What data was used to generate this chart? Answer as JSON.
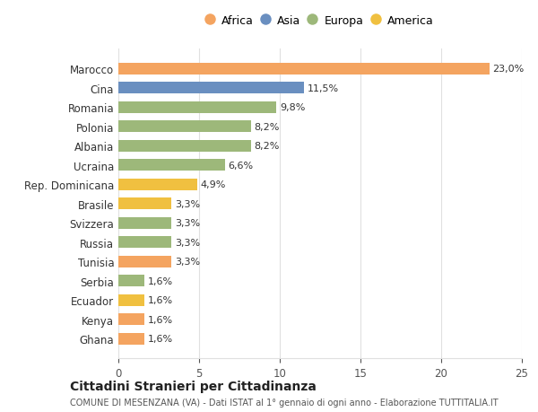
{
  "categories": [
    "Ghana",
    "Kenya",
    "Ecuador",
    "Serbia",
    "Tunisia",
    "Russia",
    "Svizzera",
    "Brasile",
    "Rep. Dominicana",
    "Ucraina",
    "Albania",
    "Polonia",
    "Romania",
    "Cina",
    "Marocco"
  ],
  "values": [
    1.6,
    1.6,
    1.6,
    1.6,
    3.3,
    3.3,
    3.3,
    3.3,
    4.9,
    6.6,
    8.2,
    8.2,
    9.8,
    11.5,
    23.0
  ],
  "labels": [
    "1,6%",
    "1,6%",
    "1,6%",
    "1,6%",
    "3,3%",
    "3,3%",
    "3,3%",
    "3,3%",
    "4,9%",
    "6,6%",
    "8,2%",
    "8,2%",
    "9,8%",
    "11,5%",
    "23,0%"
  ],
  "colors": [
    "#F4A460",
    "#F4A460",
    "#F0C040",
    "#9DB87A",
    "#F4A460",
    "#9DB87A",
    "#9DB87A",
    "#F0C040",
    "#F0C040",
    "#9DB87A",
    "#9DB87A",
    "#9DB87A",
    "#9DB87A",
    "#6A8FC0",
    "#F4A460"
  ],
  "continent_colors": {
    "Africa": "#F4A460",
    "Asia": "#6A8FC0",
    "Europa": "#9DB87A",
    "America": "#F0C040"
  },
  "legend_labels": [
    "Africa",
    "Asia",
    "Europa",
    "America"
  ],
  "title": "Cittadini Stranieri per Cittadinanza",
  "subtitle": "COMUNE DI MESENZANA (VA) - Dati ISTAT al 1° gennaio di ogni anno - Elaborazione TUTTITALIA.IT",
  "xlim": [
    0,
    25
  ],
  "xticks": [
    0,
    5,
    10,
    15,
    20,
    25
  ],
  "background_color": "#ffffff",
  "bar_height": 0.6,
  "grid_color": "#e0e0e0"
}
